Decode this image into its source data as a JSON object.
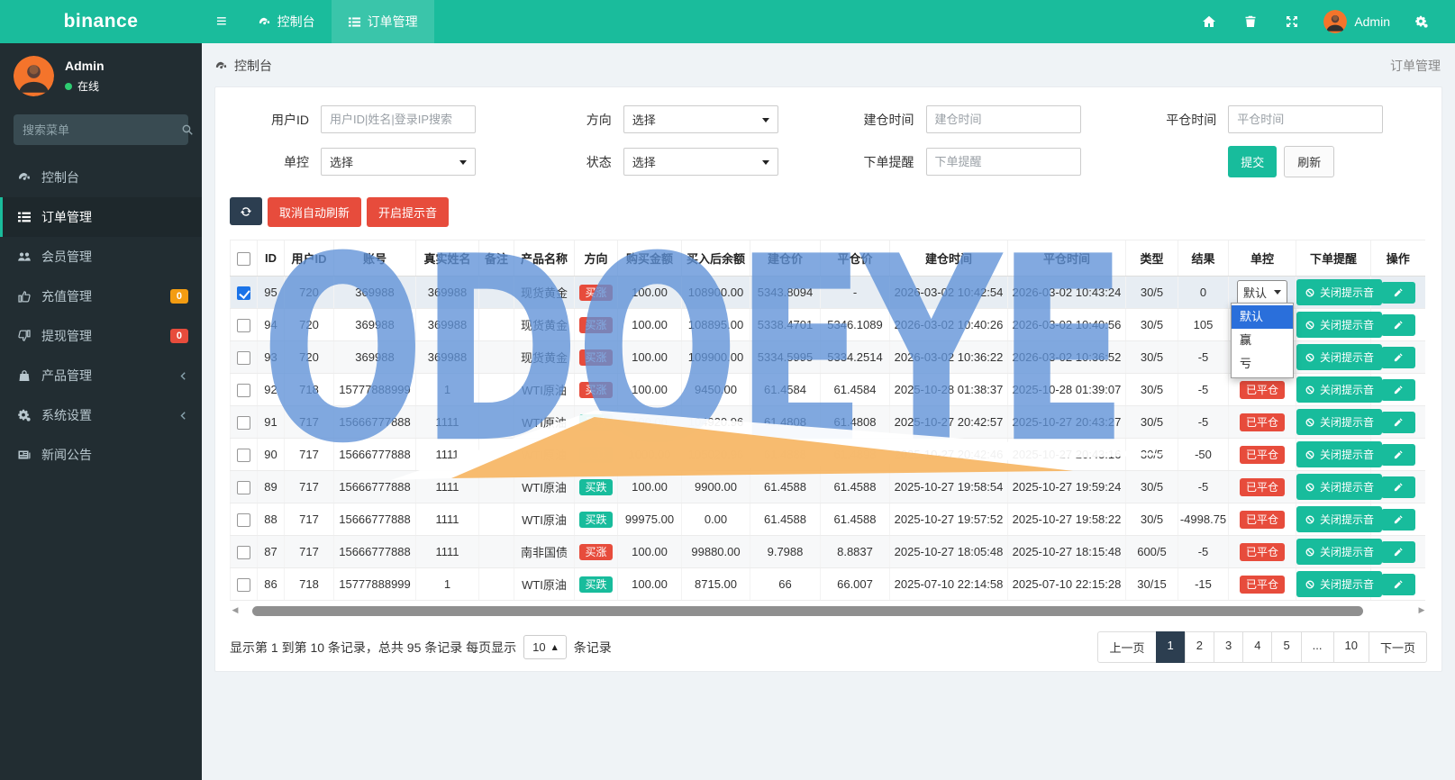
{
  "colors": {
    "accent": "#1abc9c",
    "danger": "#e74c3c",
    "navy": "#2c3e50",
    "warn": "#f39c12",
    "watermark_blue": "#5f92d8",
    "watermark_orange": "#f6b45f"
  },
  "navbar": {
    "brand": "binance",
    "menu": [
      {
        "label": "控制台"
      },
      {
        "label": "订单管理"
      }
    ],
    "user": "Admin"
  },
  "sidebar": {
    "user": {
      "name": "Admin",
      "status": "在线"
    },
    "search_placeholder": "搜索菜单",
    "items": [
      {
        "label": "控制台",
        "icon": "dashboard-icon"
      },
      {
        "label": "订单管理",
        "icon": "list-icon",
        "active": true
      },
      {
        "label": "会员管理",
        "icon": "users-icon"
      },
      {
        "label": "充值管理",
        "icon": "thumb-up-icon",
        "badge": "0",
        "badge_color": "#f39c12"
      },
      {
        "label": "提现管理",
        "icon": "thumb-down-icon",
        "badge": "0",
        "badge_color": "#e74c3c"
      },
      {
        "label": "产品管理",
        "icon": "bag-icon",
        "chevron": true
      },
      {
        "label": "系统设置",
        "icon": "gears-icon",
        "chevron": true
      },
      {
        "label": "新闻公告",
        "icon": "newspaper-icon"
      }
    ]
  },
  "breadcrumb": {
    "left": "控制台",
    "right": "订单管理"
  },
  "filters": {
    "user_id": {
      "label": "用户ID",
      "placeholder": "用户ID|姓名|登录IP搜索"
    },
    "direction": {
      "label": "方向",
      "value": "选择"
    },
    "open_time": {
      "label": "建仓时间",
      "placeholder": "建仓时间"
    },
    "close_time": {
      "label": "平仓时间",
      "placeholder": "平仓时间"
    },
    "control": {
      "label": "单控",
      "value": "选择"
    },
    "status": {
      "label": "状态",
      "value": "选择"
    },
    "reminder": {
      "label": "下单提醒",
      "placeholder": "下单提醒"
    },
    "submit": "提交",
    "refresh": "刷新"
  },
  "toolbar": {
    "cancel_auto_refresh": "取消自动刷新",
    "enable_sound": "开启提示音"
  },
  "table": {
    "headers": [
      "ID",
      "用户ID",
      "账号",
      "真实姓名",
      "备注",
      "产品名称",
      "方向",
      "购买金额",
      "买入后余额",
      "建仓价",
      "平仓价",
      "建仓时间",
      "平仓时间",
      "类型",
      "结果",
      "单控",
      "下单提醒",
      "操作"
    ],
    "control_selected": "默认",
    "control_options": [
      "默认",
      "赢",
      "亏"
    ],
    "closed_label": "已平仓",
    "reminder_off_label": "关闭提示音",
    "rows": [
      {
        "id": "95",
        "uid": "720",
        "account": "369988",
        "name": "369988",
        "note": "",
        "product": "现货黄金",
        "direction": "买涨",
        "dir": "up",
        "amount": "100.00",
        "after": "108900.00",
        "open": "5343.8094",
        "close": "-",
        "open_t": "2026-03-02 10:42:54",
        "close_t": "2026-03-02 10:43:24",
        "type": "30/5",
        "result": "0",
        "control": "select",
        "checked": true
      },
      {
        "id": "94",
        "uid": "720",
        "account": "369988",
        "name": "369988",
        "note": "",
        "product": "现货黄金",
        "direction": "买涨",
        "dir": "up",
        "amount": "100.00",
        "after": "108895.00",
        "open": "5338.4701",
        "close": "5346.1089",
        "open_t": "2026-03-02 10:40:26",
        "close_t": "2026-03-02 10:40:56",
        "type": "30/5",
        "result": "105",
        "control": "hidden",
        "checked": false
      },
      {
        "id": "93",
        "uid": "720",
        "account": "369988",
        "name": "369988",
        "note": "",
        "product": "现货黄金",
        "direction": "买涨",
        "dir": "up",
        "amount": "100.00",
        "after": "109900.00",
        "open": "5334.5995",
        "close": "5334.2514",
        "open_t": "2026-03-02 10:36:22",
        "close_t": "2026-03-02 10:36:52",
        "type": "30/5",
        "result": "-5",
        "control": "hidden",
        "checked": false
      },
      {
        "id": "92",
        "uid": "718",
        "account": "15777888999",
        "name": "1",
        "note": "",
        "product": "WTI原油",
        "direction": "买涨",
        "dir": "up",
        "amount": "100.00",
        "after": "9450.00",
        "open": "61.4584",
        "close": "61.4584",
        "open_t": "2025-10-28 01:38:37",
        "close_t": "2025-10-28 01:39:07",
        "type": "30/5",
        "result": "-5",
        "control": "closed",
        "checked": false
      },
      {
        "id": "91",
        "uid": "717",
        "account": "15666777888",
        "name": "1111",
        "note": "",
        "product": "WTI原油",
        "direction": "买跌",
        "dir": "down",
        "amount": "100.00",
        "after": "104920.96",
        "open": "61.4808",
        "close": "61.4808",
        "open_t": "2025-10-27 20:42:57",
        "close_t": "2025-10-27 20:43:27",
        "type": "30/5",
        "result": "-5",
        "control": "closed",
        "checked": false
      },
      {
        "id": "90",
        "uid": "717",
        "account": "15666777888",
        "name": "1111",
        "note": "",
        "product": "WTI原油",
        "direction": "买跌",
        "dir": "down",
        "amount": "1000.00",
        "after": "105020.96",
        "open": "61.4888",
        "close": "61.4898",
        "open_t": "2025-10-27 20:42:46",
        "close_t": "2025-10-27 20:43:16",
        "type": "30/5",
        "result": "-50",
        "control": "closed",
        "checked": false
      },
      {
        "id": "89",
        "uid": "717",
        "account": "15666777888",
        "name": "1111",
        "note": "",
        "product": "WTI原油",
        "direction": "买跌",
        "dir": "down",
        "amount": "100.00",
        "after": "9900.00",
        "open": "61.4588",
        "close": "61.4588",
        "open_t": "2025-10-27 19:58:54",
        "close_t": "2025-10-27 19:59:24",
        "type": "30/5",
        "result": "-5",
        "control": "closed",
        "checked": false
      },
      {
        "id": "88",
        "uid": "717",
        "account": "15666777888",
        "name": "1111",
        "note": "",
        "product": "WTI原油",
        "direction": "买跌",
        "dir": "down",
        "amount": "99975.00",
        "after": "0.00",
        "open": "61.4588",
        "close": "61.4588",
        "open_t": "2025-10-27 19:57:52",
        "close_t": "2025-10-27 19:58:22",
        "type": "30/5",
        "result": "-4998.75",
        "control": "closed",
        "checked": false
      },
      {
        "id": "87",
        "uid": "717",
        "account": "15666777888",
        "name": "1111",
        "note": "",
        "product": "南非国债",
        "direction": "买涨",
        "dir": "up",
        "amount": "100.00",
        "after": "99880.00",
        "open": "9.7988",
        "close": "8.8837",
        "open_t": "2025-10-27 18:05:48",
        "close_t": "2025-10-27 18:15:48",
        "type": "600/5",
        "result": "-5",
        "control": "closed",
        "checked": false
      },
      {
        "id": "86",
        "uid": "718",
        "account": "15777888999",
        "name": "1",
        "note": "",
        "product": "WTI原油",
        "direction": "买跌",
        "dir": "down",
        "amount": "100.00",
        "after": "8715.00",
        "open": "66",
        "close": "66.007",
        "open_t": "2025-07-10 22:14:58",
        "close_t": "2025-07-10 22:15:28",
        "type": "30/15",
        "result": "-15",
        "control": "closed",
        "checked": false
      }
    ]
  },
  "pagination": {
    "info_prefix": "显示第 1 到第 10 条记录，总共 95 条记录 每页显示",
    "page_size": "10",
    "info_suffix": "条记录",
    "pages": [
      "上一页",
      "1",
      "2",
      "3",
      "4",
      "5",
      "...",
      "10",
      "下一页"
    ],
    "active_page": "1"
  },
  "watermark": {
    "text": "ODOEYE"
  }
}
